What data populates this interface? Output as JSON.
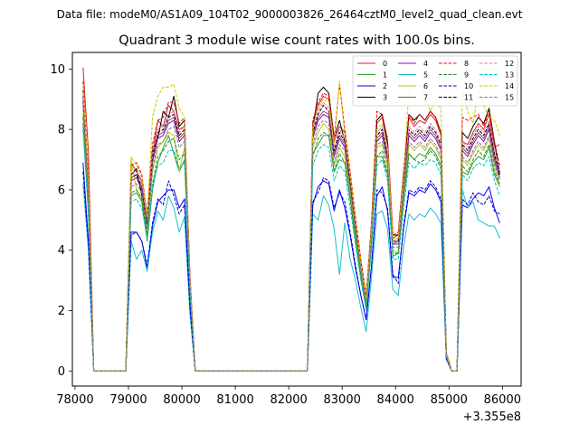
{
  "chart_data": {
    "type": "line",
    "suptitle": "Data file: modeM0/AS1A09_104T02_9000003826_26464cztM0_level2_quad_clean.evt",
    "title": "Quadrant 3 module wise count rates with 100.0s bins.",
    "xlabel": "",
    "ylabel": "",
    "x_offset_label": "+3.355e8",
    "xlim": [
      77950,
      86350
    ],
    "ylim": [
      -0.5,
      10.55
    ],
    "xticks": [
      78000,
      79000,
      80000,
      81000,
      82000,
      83000,
      84000,
      85000,
      86000
    ],
    "yticks": [
      0,
      2,
      4,
      6,
      8,
      10
    ],
    "grid": false,
    "legend_position": "top-right",
    "x": [
      78150,
      78250,
      78350,
      78950,
      79050,
      79150,
      79250,
      79350,
      79450,
      79550,
      79650,
      79750,
      79850,
      79950,
      80050,
      80150,
      80250,
      82350,
      82450,
      82550,
      82650,
      82750,
      82850,
      82950,
      83050,
      83150,
      83250,
      83350,
      83450,
      83550,
      83650,
      83750,
      83850,
      83950,
      84050,
      84150,
      84250,
      84350,
      84450,
      84550,
      84650,
      84750,
      84850,
      84950,
      85050,
      85150,
      85250,
      85350,
      85450,
      85550,
      85650,
      85750,
      85850,
      85950
    ],
    "series": [
      {
        "name": "0",
        "color": "#d62728",
        "dash": false,
        "values": [
          10.05,
          7.3,
          0.0,
          0.0,
          6.9,
          6.6,
          6.3,
          5.1,
          7.2,
          8.3,
          8.1,
          8.8,
          8.6,
          8.0,
          8.1,
          3.2,
          0.0,
          0.0,
          8.2,
          8.8,
          9.1,
          9.0,
          7.6,
          8.1,
          7.9,
          6.5,
          5.0,
          3.6,
          2.4,
          4.8,
          8.2,
          8.4,
          7.5,
          4.4,
          4.5,
          6.5,
          8.4,
          8.1,
          8.3,
          8.2,
          8.5,
          8.3,
          7.8,
          0.6,
          0.0,
          0.0,
          7.6,
          7.5,
          7.9,
          8.2,
          8.0,
          8.5,
          7.4,
          7.5
        ]
      },
      {
        "name": "1",
        "color": "#2ca02c",
        "dash": false,
        "values": [
          8.2,
          5.2,
          0.0,
          0.0,
          5.8,
          5.9,
          5.6,
          4.3,
          6.0,
          6.9,
          7.4,
          7.8,
          7.2,
          6.6,
          7.0,
          2.7,
          0.0,
          0.0,
          7.2,
          7.5,
          7.8,
          7.8,
          6.6,
          7.0,
          6.9,
          5.7,
          4.3,
          3.1,
          2.1,
          4.2,
          7.1,
          7.1,
          6.5,
          3.8,
          3.9,
          5.7,
          7.2,
          7.0,
          7.2,
          7.1,
          7.4,
          7.2,
          6.8,
          0.5,
          0.0,
          0.0,
          6.6,
          6.5,
          6.9,
          7.1,
          7.0,
          7.4,
          6.5,
          6.1
        ]
      },
      {
        "name": "2",
        "color": "#0000ff",
        "dash": false,
        "values": [
          6.9,
          4.3,
          0.0,
          0.0,
          4.6,
          4.6,
          4.3,
          3.4,
          4.8,
          5.6,
          5.8,
          6.0,
          6.0,
          5.4,
          5.7,
          2.2,
          0.0,
          0.0,
          5.5,
          6.1,
          6.3,
          6.2,
          5.3,
          6.0,
          5.4,
          4.5,
          3.4,
          2.5,
          1.7,
          3.5,
          5.8,
          6.1,
          5.3,
          3.1,
          3.1,
          4.7,
          5.9,
          5.8,
          6.0,
          5.9,
          6.2,
          6.0,
          5.6,
          0.4,
          0.0,
          0.0,
          5.5,
          5.4,
          5.7,
          5.9,
          5.8,
          6.1,
          5.4,
          4.9
        ]
      },
      {
        "name": "3",
        "color": "#000000",
        "dash": false,
        "values": [
          9.3,
          6.2,
          0.0,
          0.0,
          6.5,
          6.7,
          5.8,
          4.7,
          7.3,
          7.7,
          8.6,
          8.4,
          9.1,
          8.1,
          8.3,
          3.1,
          0.0,
          0.0,
          8.0,
          9.2,
          9.4,
          9.2,
          7.7,
          8.3,
          7.6,
          6.4,
          4.9,
          3.6,
          2.4,
          4.9,
          8.3,
          8.5,
          7.6,
          4.5,
          4.5,
          6.6,
          8.5,
          8.3,
          8.5,
          8.3,
          8.6,
          8.4,
          7.9,
          0.6,
          0.0,
          0.0,
          7.9,
          7.7,
          8.1,
          8.4,
          8.2,
          8.7,
          7.6,
          6.5
        ]
      },
      {
        "name": "4",
        "color": "#9400d3",
        "dash": false,
        "values": [
          8.9,
          6.0,
          0.0,
          0.0,
          6.3,
          6.4,
          6.0,
          4.8,
          6.9,
          7.7,
          7.8,
          8.2,
          8.3,
          7.6,
          7.8,
          3.0,
          0.0,
          0.0,
          7.7,
          8.3,
          8.5,
          8.4,
          7.1,
          7.7,
          7.4,
          6.1,
          4.7,
          3.4,
          2.3,
          4.6,
          7.6,
          7.8,
          7.0,
          4.2,
          4.2,
          6.1,
          7.8,
          7.6,
          7.8,
          7.6,
          7.9,
          7.7,
          7.3,
          0.5,
          0.0,
          0.0,
          7.3,
          7.1,
          7.5,
          7.8,
          7.6,
          8.0,
          7.0,
          6.4
        ]
      },
      {
        "name": "5",
        "color": "#17becf",
        "dash": false,
        "values": [
          6.2,
          4.0,
          0.0,
          0.0,
          4.3,
          3.7,
          4.0,
          3.3,
          4.6,
          5.3,
          5.0,
          5.8,
          5.4,
          4.6,
          5.1,
          1.9,
          0.0,
          0.0,
          5.2,
          5.0,
          5.8,
          5.5,
          4.7,
          3.2,
          4.9,
          3.7,
          3.0,
          2.1,
          1.3,
          3.1,
          5.2,
          5.3,
          4.7,
          2.7,
          2.5,
          4.1,
          5.2,
          5.0,
          5.2,
          5.1,
          5.4,
          5.2,
          4.9,
          0.4,
          0.0,
          0.0,
          6.0,
          5.4,
          5.6,
          5.0,
          4.9,
          4.8,
          4.8,
          4.4
        ]
      },
      {
        "name": "6",
        "color": "#bcbd22",
        "dash": false,
        "values": [
          8.5,
          5.6,
          0.0,
          0.0,
          7.0,
          6.0,
          5.7,
          4.6,
          6.6,
          7.4,
          7.6,
          7.9,
          7.8,
          6.6,
          7.4,
          2.8,
          0.0,
          0.0,
          7.4,
          7.9,
          8.2,
          8.0,
          6.8,
          7.4,
          7.1,
          5.9,
          4.5,
          3.3,
          2.2,
          4.4,
          7.4,
          7.5,
          6.8,
          4.0,
          3.9,
          5.9,
          7.5,
          7.3,
          7.5,
          7.3,
          7.6,
          7.4,
          7.0,
          0.5,
          0.0,
          0.0,
          7.0,
          6.8,
          7.2,
          7.5,
          7.3,
          7.7,
          6.8,
          6.1
        ]
      },
      {
        "name": "7",
        "color": "#8c564b",
        "dash": false,
        "values": [
          9.0,
          6.1,
          0.0,
          0.0,
          6.4,
          6.5,
          6.1,
          4.9,
          7.0,
          7.8,
          7.9,
          8.3,
          8.4,
          7.7,
          7.9,
          3.0,
          0.0,
          0.0,
          7.8,
          8.4,
          8.6,
          8.5,
          7.2,
          7.8,
          7.5,
          6.2,
          4.8,
          3.5,
          2.3,
          4.6,
          7.7,
          7.9,
          7.1,
          4.2,
          4.3,
          6.2,
          7.9,
          7.7,
          7.9,
          7.7,
          8.0,
          7.8,
          7.4,
          0.5,
          0.0,
          0.0,
          7.4,
          7.2,
          7.6,
          7.9,
          7.7,
          8.1,
          7.1,
          6.6
        ]
      },
      {
        "name": "8",
        "color": "#ff0000",
        "dash": true,
        "values": [
          9.6,
          6.5,
          0.0,
          0.0,
          6.8,
          6.9,
          6.5,
          5.2,
          7.5,
          8.3,
          8.4,
          8.9,
          8.9,
          8.2,
          8.4,
          3.2,
          0.0,
          0.0,
          8.3,
          8.9,
          9.2,
          9.1,
          7.7,
          9.5,
          8.0,
          6.6,
          5.1,
          3.7,
          2.5,
          4.9,
          8.6,
          8.5,
          7.7,
          4.5,
          4.6,
          6.6,
          8.5,
          8.2,
          8.5,
          8.3,
          8.6,
          8.4,
          7.9,
          0.6,
          0.0,
          0.0,
          8.4,
          8.3,
          8.4,
          8.5,
          8.1,
          8.6,
          7.6,
          6.8
        ]
      },
      {
        "name": "9",
        "color": "#228b22",
        "dash": true,
        "values": [
          8.4,
          5.5,
          0.0,
          0.0,
          5.9,
          6.0,
          5.7,
          4.5,
          6.2,
          7.1,
          7.3,
          7.6,
          7.7,
          7.0,
          7.2,
          2.8,
          0.0,
          0.0,
          7.1,
          7.7,
          7.9,
          7.8,
          6.6,
          7.2,
          6.9,
          5.7,
          4.4,
          3.2,
          2.1,
          4.3,
          7.1,
          7.3,
          6.6,
          3.9,
          3.9,
          5.7,
          7.2,
          7.0,
          6.9,
          7.0,
          7.3,
          7.1,
          6.7,
          0.5,
          0.0,
          0.0,
          6.8,
          6.6,
          7.0,
          7.3,
          7.1,
          7.5,
          6.6,
          6.2
        ]
      },
      {
        "name": "10",
        "color": "#0000cd",
        "dash": true,
        "values": [
          6.6,
          4.2,
          0.0,
          0.0,
          4.5,
          4.6,
          4.3,
          3.5,
          4.9,
          5.7,
          5.5,
          6.3,
          5.8,
          5.2,
          5.5,
          2.1,
          0.0,
          0.0,
          5.6,
          5.9,
          6.4,
          6.3,
          5.4,
          5.9,
          5.6,
          4.6,
          3.5,
          2.5,
          1.7,
          3.5,
          6.0,
          5.9,
          5.4,
          3.2,
          2.9,
          4.8,
          6.0,
          5.9,
          6.1,
          6.0,
          6.3,
          6.1,
          5.7,
          0.4,
          0.0,
          0.0,
          5.7,
          5.5,
          5.9,
          5.6,
          5.5,
          5.8,
          5.3,
          5.2
        ]
      },
      {
        "name": "11",
        "color": "#000000",
        "dash": true,
        "values": [
          9.1,
          6.1,
          0.0,
          0.0,
          6.4,
          6.5,
          6.1,
          4.9,
          7.1,
          7.9,
          8.0,
          8.4,
          8.5,
          7.8,
          8.0,
          3.0,
          0.0,
          0.0,
          7.9,
          8.5,
          8.8,
          8.6,
          7.3,
          7.9,
          7.6,
          6.3,
          4.8,
          3.5,
          2.4,
          4.7,
          7.8,
          8.0,
          7.2,
          4.3,
          4.3,
          6.3,
          8.0,
          7.8,
          8.0,
          7.8,
          8.1,
          7.9,
          7.5,
          0.5,
          0.0,
          0.0,
          7.5,
          7.3,
          7.7,
          8.0,
          7.8,
          8.2,
          7.2,
          6.5
        ]
      },
      {
        "name": "12",
        "color": "#e377c2",
        "dash": true,
        "values": [
          9.2,
          6.2,
          0.0,
          0.0,
          6.5,
          6.6,
          6.2,
          5.0,
          7.2,
          8.0,
          8.1,
          8.5,
          8.6,
          7.9,
          8.1,
          3.1,
          0.0,
          0.0,
          8.0,
          8.6,
          8.9,
          8.7,
          7.4,
          8.0,
          7.7,
          6.4,
          4.9,
          3.5,
          2.4,
          4.7,
          7.9,
          8.1,
          7.3,
          4.3,
          4.4,
          6.4,
          8.1,
          7.9,
          8.1,
          7.9,
          8.2,
          8.0,
          7.6,
          0.5,
          0.0,
          0.0,
          7.6,
          7.4,
          7.8,
          8.1,
          7.9,
          8.3,
          7.3,
          6.7
        ]
      },
      {
        "name": "13",
        "color": "#00bfbf",
        "dash": true,
        "values": [
          8.0,
          5.3,
          0.0,
          0.0,
          5.6,
          5.7,
          5.4,
          4.4,
          6.1,
          6.8,
          6.9,
          7.3,
          7.3,
          6.7,
          6.9,
          2.6,
          0.0,
          0.0,
          6.8,
          7.3,
          7.5,
          7.4,
          6.3,
          6.8,
          6.6,
          5.4,
          4.2,
          3.0,
          2.0,
          4.1,
          6.8,
          7.0,
          6.3,
          3.7,
          3.7,
          5.4,
          6.9,
          6.7,
          6.9,
          6.8,
          7.0,
          6.9,
          6.5,
          0.5,
          0.0,
          0.0,
          6.5,
          6.3,
          6.7,
          6.9,
          6.8,
          7.1,
          6.3,
          5.8
        ]
      },
      {
        "name": "14",
        "color": "#cccc00",
        "dash": true,
        "values": [
          9.4,
          6.3,
          0.0,
          0.0,
          7.1,
          6.8,
          6.4,
          5.1,
          8.4,
          9.1,
          9.4,
          9.4,
          9.5,
          8.7,
          8.4,
          3.1,
          0.0,
          0.0,
          8.1,
          8.7,
          9.0,
          8.9,
          7.5,
          9.6,
          7.8,
          6.5,
          5.0,
          3.6,
          2.4,
          4.8,
          8.0,
          8.2,
          7.4,
          4.4,
          4.4,
          6.5,
          9.3,
          9.4,
          9.5,
          9.2,
          8.6,
          8.9,
          8.7,
          0.6,
          0.0,
          0.0,
          9.3,
          8.6,
          8.2,
          9.3,
          8.8,
          8.4,
          8.3,
          7.8
        ]
      },
      {
        "name": "15",
        "color": "#7f7f7f",
        "dash": true,
        "values": [
          8.7,
          5.8,
          0.0,
          0.0,
          6.1,
          6.2,
          5.9,
          4.7,
          6.7,
          7.5,
          7.6,
          8.0,
          8.1,
          7.4,
          7.6,
          2.9,
          0.0,
          0.0,
          7.5,
          8.1,
          8.3,
          8.2,
          6.9,
          7.5,
          7.3,
          6.0,
          4.6,
          3.4,
          2.2,
          4.5,
          7.5,
          7.6,
          6.9,
          4.1,
          4.1,
          6.0,
          7.6,
          7.4,
          7.6,
          7.4,
          7.7,
          7.5,
          7.1,
          0.5,
          0.0,
          0.0,
          7.1,
          6.9,
          7.3,
          7.6,
          7.4,
          7.8,
          6.9,
          6.3
        ]
      }
    ]
  }
}
